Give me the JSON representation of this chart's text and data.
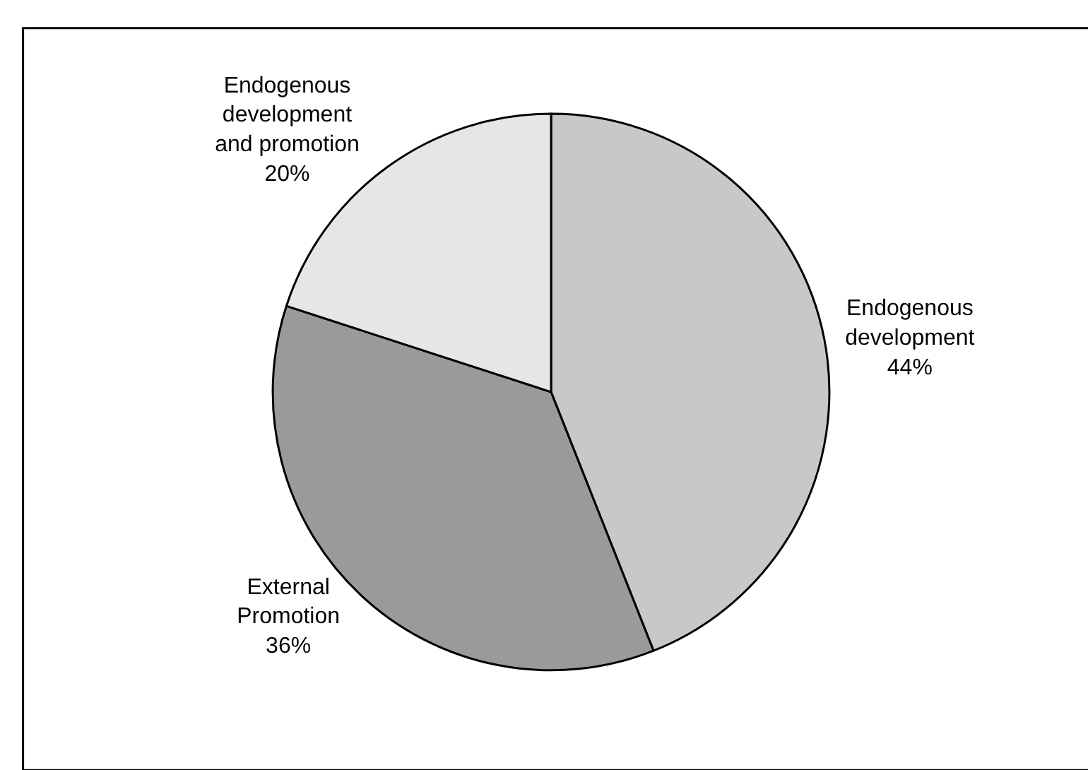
{
  "chart_data": {
    "type": "pie",
    "categories": [
      "Endogenous development",
      "External Promotion",
      "Endogenous development and promotion"
    ],
    "values": [
      44,
      36,
      20
    ],
    "value_labels": [
      "44%",
      "36%",
      "20%"
    ],
    "colors": [
      "#c8c8c8",
      "#9a9a9a",
      "#e6e6e6"
    ],
    "legend": false
  }
}
